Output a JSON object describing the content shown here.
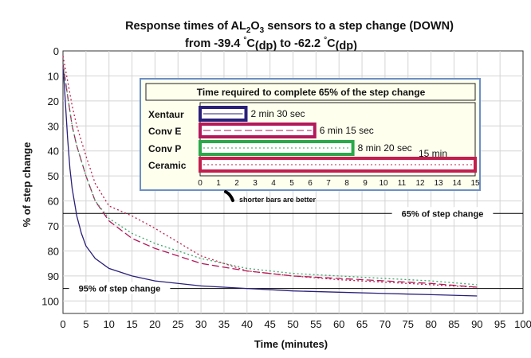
{
  "chart_data": {
    "type": "line",
    "title_line1_main": "Response times of AL",
    "title_line1_sub2": "2",
    "title_line1_mid": "O",
    "title_line1_sub3": "3",
    "title_line1_end": " sensors to a step change (DOWN)",
    "title_line2_a": "from -39.4 ",
    "title_line2_deg1": "°",
    "title_line2_c1": "C",
    "title_line2_dp1": "(dp)",
    "title_line2_b": " to -62.2 ",
    "title_line2_deg2": "°",
    "title_line2_c2": "C",
    "title_line2_dp2": "(dp)",
    "xlabel": "Time (minutes)",
    "ylabel": "% of step change",
    "xlim": [
      0,
      100
    ],
    "ylim": [
      0,
      105
    ],
    "y_inverted": true,
    "x_ticks": [
      "0",
      "5",
      "10",
      "15",
      "20",
      "25",
      "30",
      "35",
      "40",
      "45",
      "50",
      "55",
      "60",
      "65",
      "70",
      "75",
      "80",
      "85",
      "90",
      "95",
      "100"
    ],
    "y_ticks": [
      "0",
      "10",
      "20",
      "30",
      "40",
      "50",
      "60",
      "70",
      "80",
      "90",
      "100"
    ],
    "grid": true,
    "reference_lines": [
      {
        "y": 65,
        "label": "65% of step change"
      },
      {
        "y": 95,
        "label": "95% of step change"
      }
    ],
    "series": [
      {
        "color": "#2a1f7a",
        "dash": "solid",
        "points": [
          [
            0,
            5
          ],
          [
            0.5,
            20
          ],
          [
            1,
            35
          ],
          [
            1.5,
            47
          ],
          [
            2,
            55
          ],
          [
            3,
            66
          ],
          [
            4,
            73
          ],
          [
            5,
            78
          ],
          [
            7,
            83
          ],
          [
            10,
            87
          ],
          [
            15,
            90
          ],
          [
            20,
            92
          ],
          [
            30,
            94
          ],
          [
            40,
            95
          ],
          [
            50,
            96
          ],
          [
            60,
            96.5
          ],
          [
            70,
            97
          ],
          [
            80,
            97.5
          ],
          [
            90,
            98
          ]
        ]
      },
      {
        "color": "#b3185a",
        "dash": "long",
        "points": [
          [
            0,
            5
          ],
          [
            1,
            18
          ],
          [
            2,
            30
          ],
          [
            3,
            38
          ],
          [
            5,
            50
          ],
          [
            7,
            60
          ],
          [
            10,
            68
          ],
          [
            15,
            75
          ],
          [
            20,
            79
          ],
          [
            30,
            85
          ],
          [
            40,
            88
          ],
          [
            50,
            90
          ],
          [
            60,
            91
          ],
          [
            70,
            92
          ],
          [
            80,
            93
          ],
          [
            90,
            94.5
          ]
        ]
      },
      {
        "color": "#3aa86a",
        "dash": "dot",
        "points": [
          [
            0,
            5
          ],
          [
            1,
            18
          ],
          [
            2,
            30
          ],
          [
            3,
            38
          ],
          [
            5,
            50
          ],
          [
            7,
            60
          ],
          [
            10,
            67
          ],
          [
            15,
            73
          ],
          [
            20,
            77
          ],
          [
            30,
            83
          ],
          [
            40,
            87
          ],
          [
            50,
            89
          ],
          [
            60,
            90
          ],
          [
            70,
            91
          ],
          [
            80,
            92
          ],
          [
            90,
            93.5
          ]
        ]
      },
      {
        "color": "#c21e4e",
        "dash": "dot",
        "points": [
          [
            0,
            2
          ],
          [
            1,
            12
          ],
          [
            2,
            22
          ],
          [
            3,
            30
          ],
          [
            5,
            42
          ],
          [
            7,
            53
          ],
          [
            10,
            62
          ],
          [
            15,
            66
          ],
          [
            20,
            71
          ],
          [
            30,
            82
          ],
          [
            40,
            88
          ],
          [
            50,
            90
          ],
          [
            60,
            91.5
          ],
          [
            70,
            92.5
          ],
          [
            80,
            93.5
          ],
          [
            90,
            94.5
          ]
        ]
      }
    ],
    "inset": {
      "title": "Time required to complete 65% of the step change",
      "xlim": [
        0,
        15
      ],
      "x_ticks": [
        "0",
        "1",
        "2",
        "3",
        "4",
        "5",
        "6",
        "7",
        "8",
        "9",
        "10",
        "11",
        "12",
        "13",
        "14",
        "15"
      ],
      "bars": [
        {
          "name": "Xentaur",
          "value": 2.5,
          "label": "2 min 30 sec",
          "color": "#2a1f7a",
          "dash": "solid"
        },
        {
          "name": "Conv E",
          "value": 6.25,
          "label": "6 min 15 sec",
          "color": "#b3185a",
          "dash": "long"
        },
        {
          "name": "Conv P",
          "value": 8.33,
          "label": "8 min 20 sec",
          "color": "#2aa84a",
          "dash": "dot"
        },
        {
          "name": "Ceramic",
          "value": 15,
          "label": "15 min",
          "color": "#c21e4e",
          "dash": "dot"
        }
      ],
      "note": "shorter bars are better"
    }
  }
}
